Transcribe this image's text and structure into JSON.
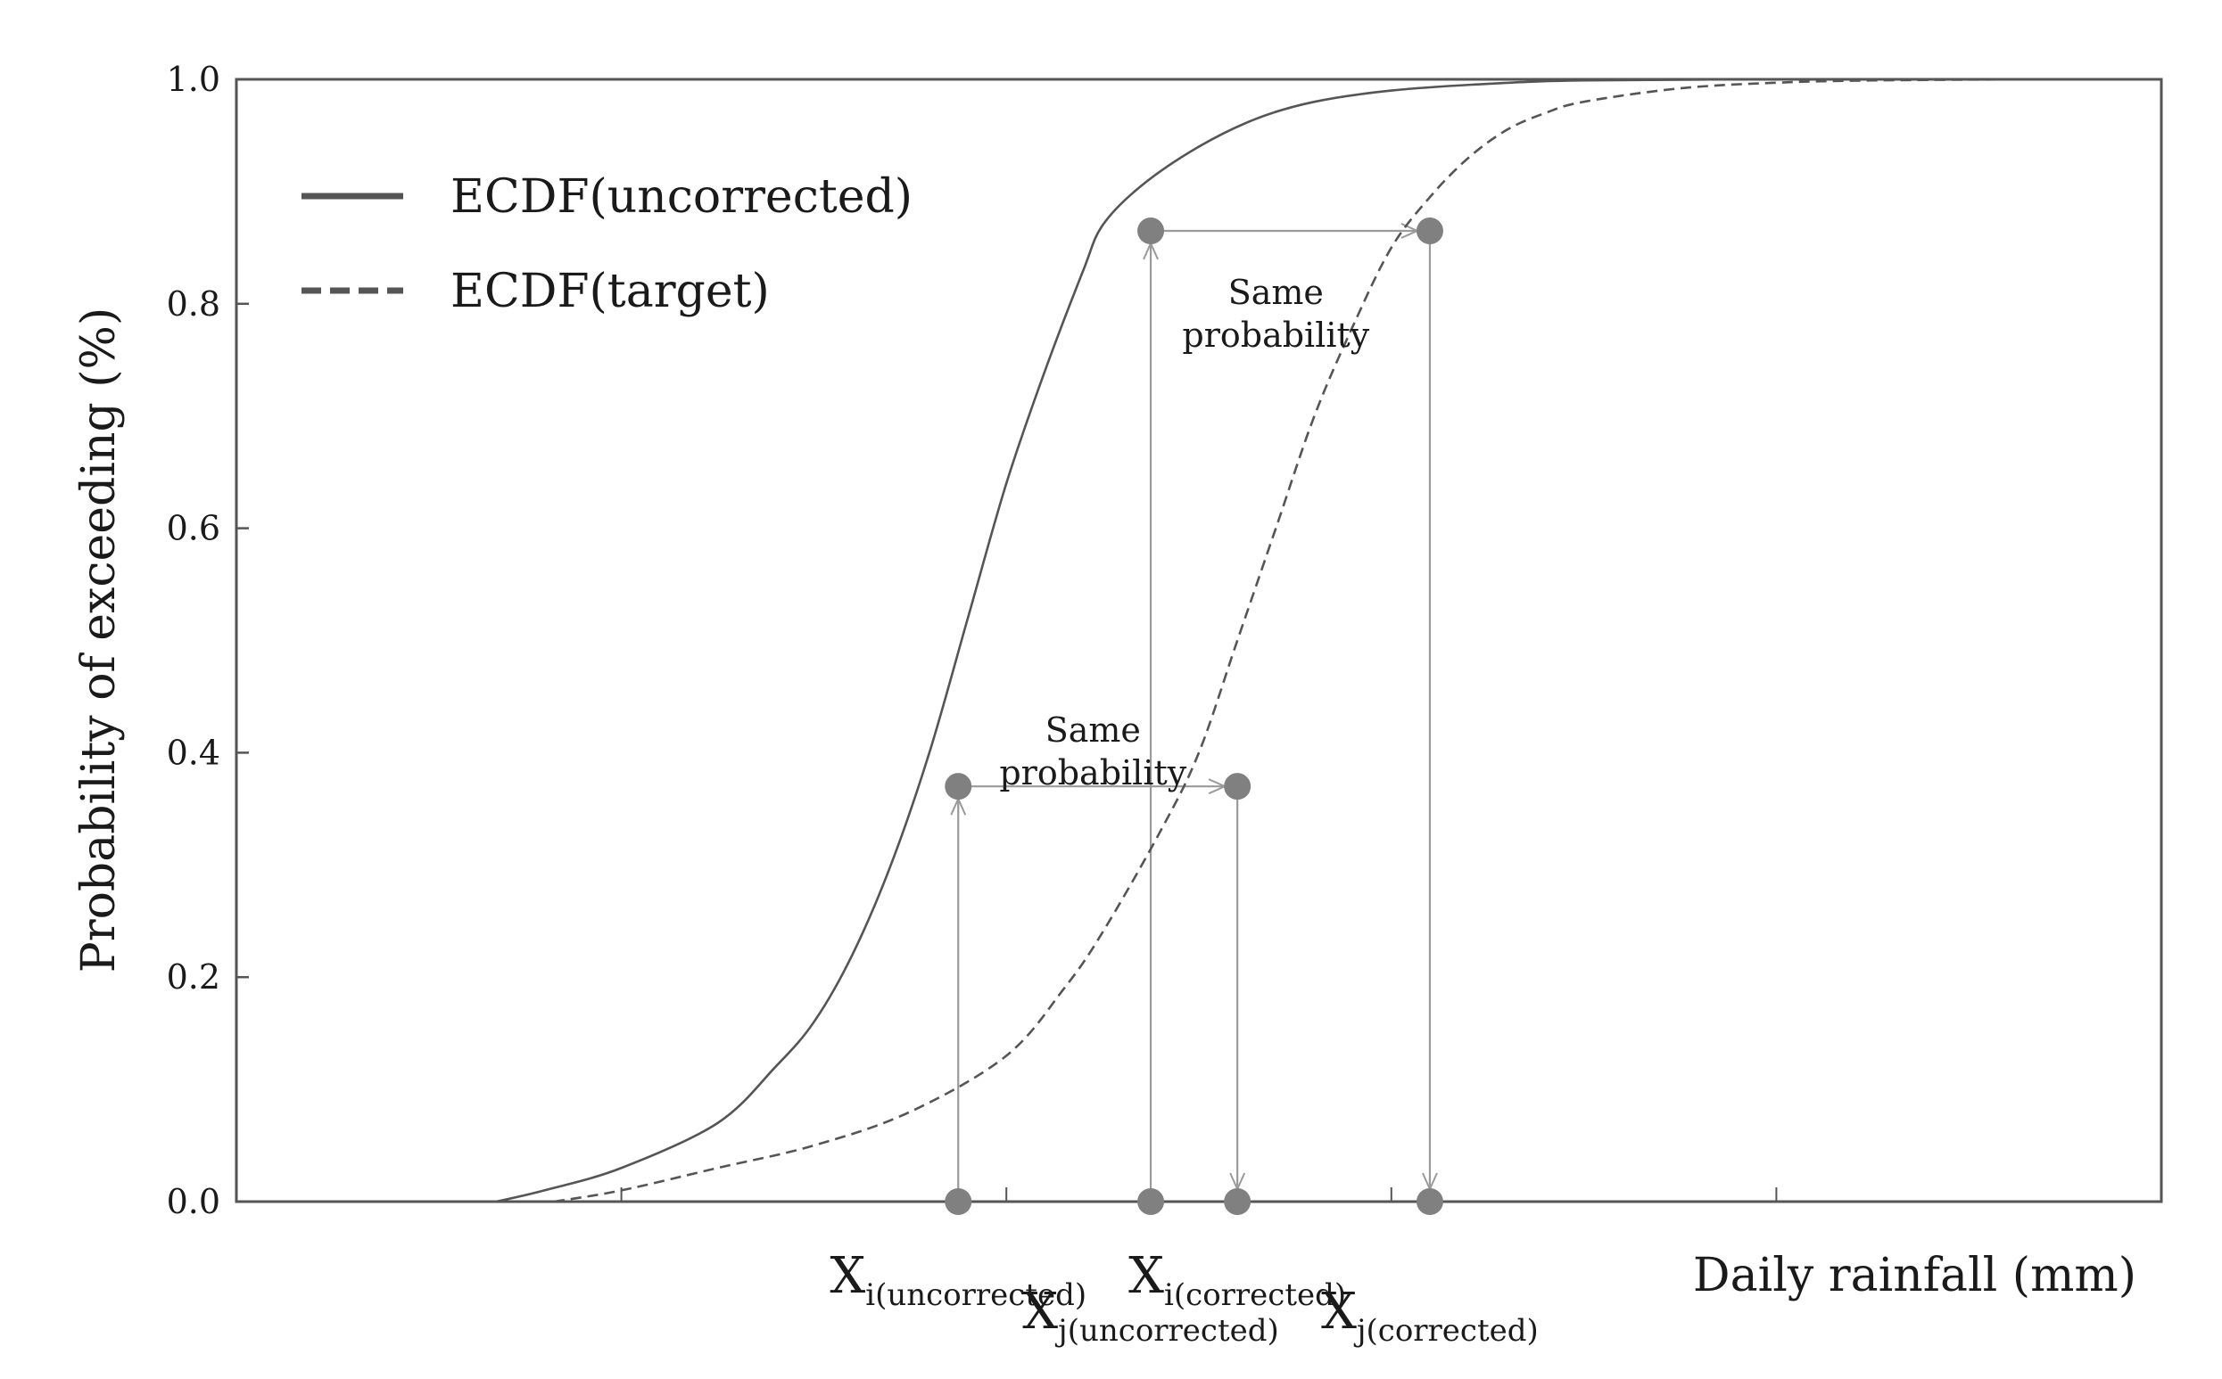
{
  "chart_data": {
    "type": "line",
    "title": "",
    "xlabel": "Daily rainfall (mm)",
    "ylabel": "Probability of exceeding (%)",
    "ylim": [
      0,
      1.0
    ],
    "yticks": [
      "0.0",
      "0.2",
      "0.4",
      "0.6",
      "0.8",
      "1.0"
    ],
    "xlim": [
      0,
      100
    ],
    "grid": false,
    "legend_position": "top-left",
    "series": [
      {
        "name": "ECDF(uncorrected)",
        "style": "solid",
        "color": "#555555",
        "x": [
          13.5,
          16,
          20,
          25,
          28,
          30,
          32,
          34,
          36,
          38,
          40,
          42,
          44,
          45,
          47,
          50,
          53,
          56,
          60,
          65,
          70,
          80,
          90,
          100
        ],
        "y": [
          0.0,
          0.01,
          0.03,
          0.07,
          0.12,
          0.16,
          0.22,
          0.3,
          0.4,
          0.52,
          0.64,
          0.74,
          0.83,
          0.87,
          0.905,
          0.94,
          0.965,
          0.98,
          0.99,
          0.996,
          0.999,
          1.0,
          1.0,
          1.0
        ]
      },
      {
        "name": "ECDF(target)",
        "style": "dashed",
        "color": "#555555",
        "x": [
          16.5,
          20,
          25,
          30,
          35,
          40,
          43,
          45,
          48,
          50,
          52,
          54,
          56,
          58,
          60,
          62,
          64,
          66,
          68,
          70,
          75,
          80,
          85,
          93
        ],
        "y": [
          0.0,
          0.01,
          0.03,
          0.05,
          0.08,
          0.13,
          0.19,
          0.24,
          0.33,
          0.4,
          0.5,
          0.6,
          0.7,
          0.78,
          0.85,
          0.895,
          0.93,
          0.955,
          0.97,
          0.98,
          0.992,
          0.997,
          0.999,
          1.0
        ]
      }
    ],
    "points": [
      {
        "name": "x_i_uncorrected",
        "x": 37.5,
        "y": 0.37
      },
      {
        "name": "x_j_uncorrected",
        "x": 47.5,
        "y": 0.865
      },
      {
        "name": "x_i_corrected",
        "x": 52,
        "y": 0.37
      },
      {
        "name": "x_j_corrected",
        "x": 62,
        "y": 0.865
      }
    ],
    "x_markers": [
      {
        "symbol": "X",
        "subscript": "i(uncorrected)",
        "x": 37.5
      },
      {
        "symbol": "X",
        "subscript": "j(uncorrected)",
        "x": 47.5
      },
      {
        "symbol": "X",
        "subscript": "i(corrected)",
        "x": 52
      },
      {
        "symbol": "X",
        "subscript": "j(corrected)",
        "x": 62
      }
    ],
    "x_minor_ticks": [
      20,
      40,
      60,
      80
    ],
    "annotations": [
      {
        "line1": "Same",
        "line2": "probability",
        "x": 44.5,
        "y": 0.41
      },
      {
        "line1": "Same",
        "line2": "probability",
        "x": 54,
        "y": 0.8
      }
    ]
  },
  "colors": {
    "curve": "#555555",
    "marker": "#808080",
    "arrow": "#9a9a9a",
    "frame": "#555555"
  }
}
